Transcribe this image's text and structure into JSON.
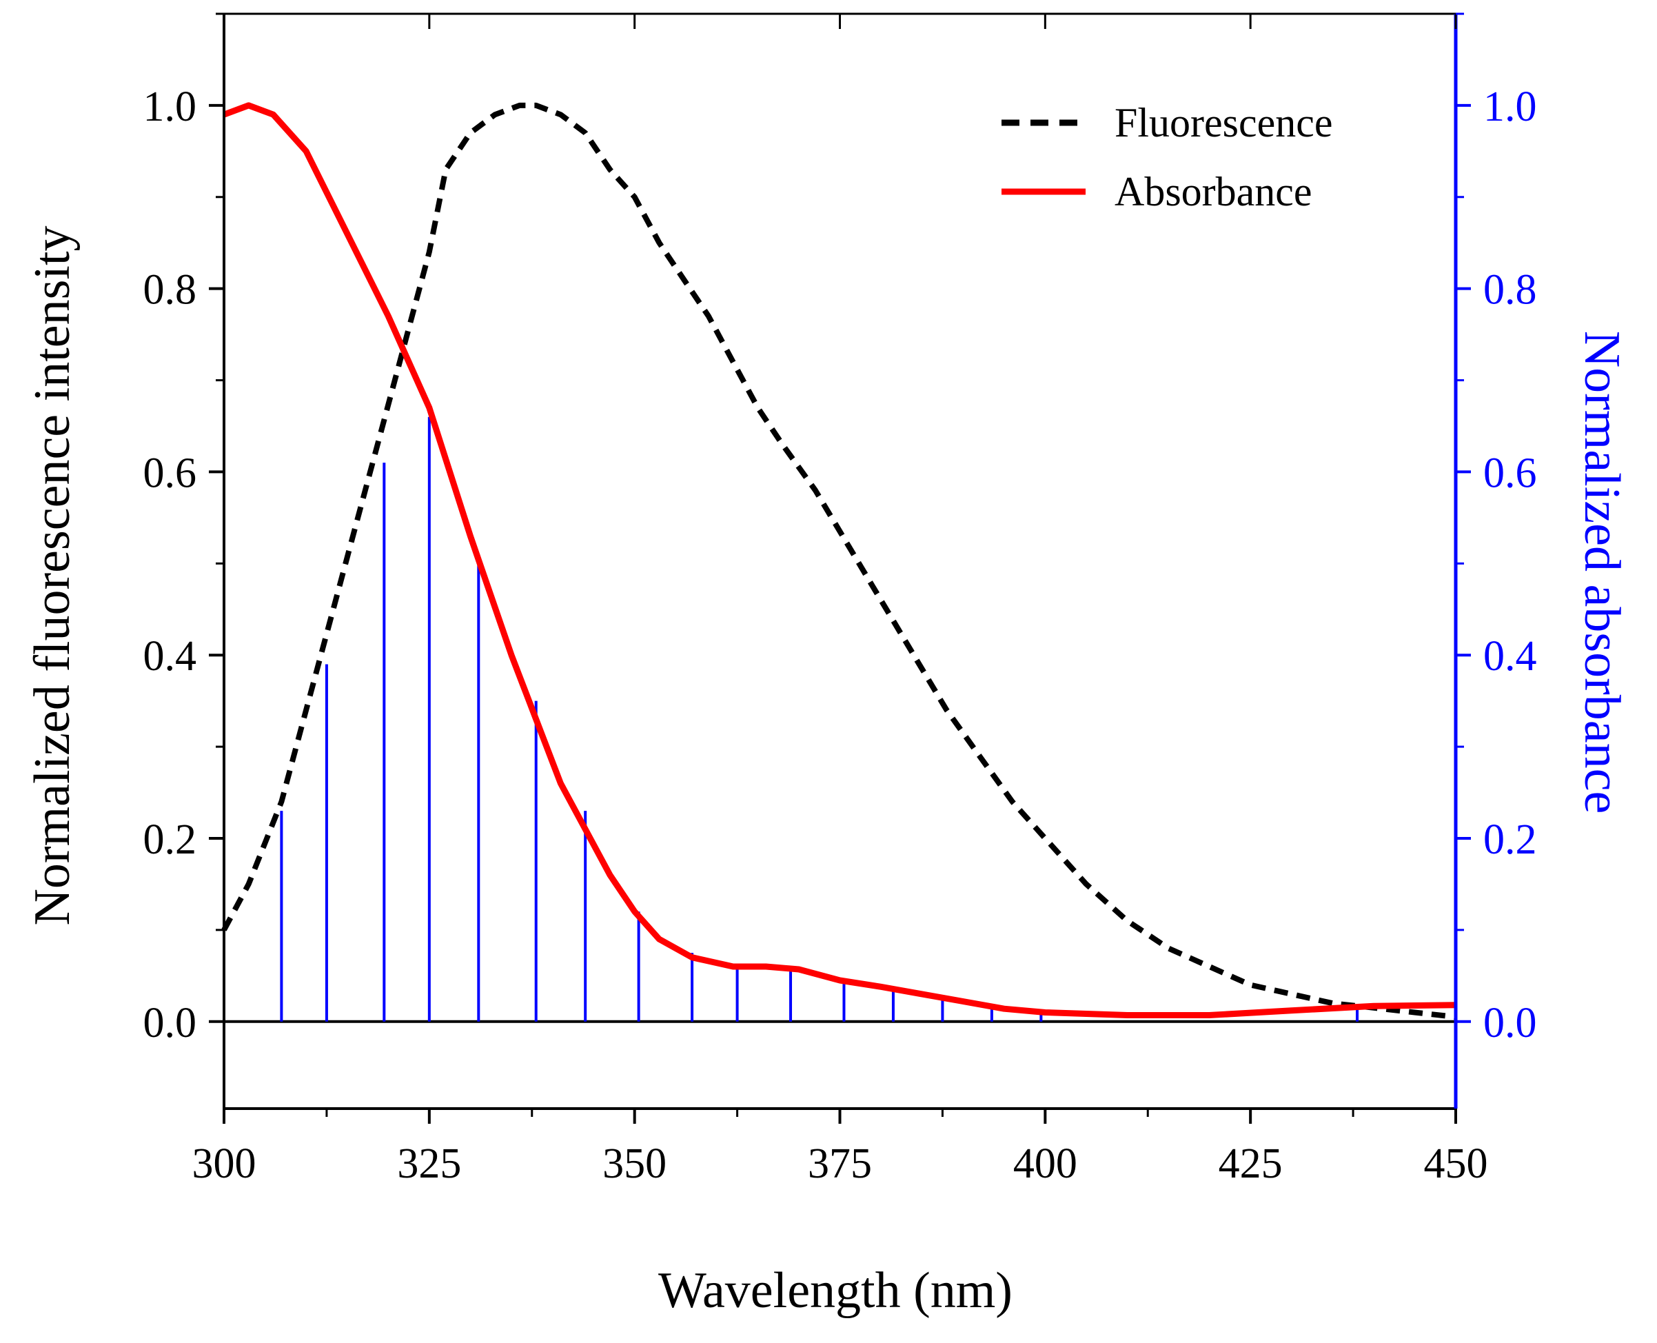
{
  "colors": {
    "fluorescence": "#000000",
    "absorbance": "#ff0000",
    "stems": "#0000ff",
    "right_axis": "#0000ff",
    "axes": "#000000"
  },
  "chart_data": {
    "type": "line",
    "title": "",
    "xlabel": "Wavelength (nm)",
    "ylabel": "Normalized fluorescence intensity",
    "ylabel_right": "Normalized absorbance",
    "xlim": [
      300,
      450
    ],
    "ylim": [
      -0.095,
      1.1
    ],
    "ylim_right": [
      -0.095,
      1.1
    ],
    "xticks": [
      300,
      325,
      350,
      375,
      400,
      425,
      450
    ],
    "xtick_labels": [
      "300",
      "325",
      "350",
      "375",
      "400",
      "425",
      "450"
    ],
    "yticks": [
      0.0,
      0.2,
      0.4,
      0.6,
      0.8,
      1.0
    ],
    "ytick_labels": [
      "0.0",
      "0.2",
      "0.4",
      "0.6",
      "0.8",
      "1.0"
    ],
    "yticks_right": [
      0.0,
      0.2,
      0.4,
      0.6,
      0.8,
      1.0
    ],
    "ytick_labels_right": [
      "0.0",
      "0.2",
      "0.4",
      "0.6",
      "0.8",
      "1.0"
    ],
    "legend": {
      "position": "top-right",
      "entries": [
        {
          "label": "Fluorescence",
          "style": "dashed",
          "color": "#000000"
        },
        {
          "label": "Absorbance",
          "style": "solid",
          "color": "#ff0000"
        }
      ]
    },
    "series": [
      {
        "name": "Fluorescence",
        "style": "dashed",
        "color": "#000000",
        "x": [
          300,
          303,
          307,
          310,
          313,
          316,
          319,
          322,
          325,
          327,
          330,
          333,
          336,
          338,
          341,
          344,
          347,
          350,
          353,
          356,
          359,
          362,
          365,
          368,
          372,
          376,
          380,
          384,
          388,
          392,
          396,
          400,
          405,
          410,
          415,
          420,
          425,
          430,
          435,
          440,
          445,
          450
        ],
        "y": [
          0.1,
          0.15,
          0.24,
          0.34,
          0.44,
          0.54,
          0.64,
          0.74,
          0.84,
          0.93,
          0.97,
          0.99,
          1.0,
          1.0,
          0.99,
          0.97,
          0.93,
          0.9,
          0.85,
          0.81,
          0.77,
          0.72,
          0.67,
          0.63,
          0.58,
          0.52,
          0.46,
          0.4,
          0.34,
          0.29,
          0.24,
          0.2,
          0.15,
          0.11,
          0.08,
          0.06,
          0.04,
          0.03,
          0.02,
          0.015,
          0.01,
          0.005
        ]
      },
      {
        "name": "Absorbance",
        "style": "solid",
        "color": "#ff0000",
        "x": [
          300,
          303,
          306,
          310,
          315,
          320,
          325,
          330,
          335,
          338,
          341,
          344,
          347,
          350,
          353,
          357,
          362,
          366,
          370,
          375,
          380,
          385,
          390,
          395,
          400,
          410,
          420,
          430,
          440,
          450
        ],
        "y": [
          0.99,
          1.0,
          0.99,
          0.95,
          0.86,
          0.77,
          0.67,
          0.53,
          0.4,
          0.33,
          0.26,
          0.21,
          0.16,
          0.12,
          0.09,
          0.07,
          0.06,
          0.06,
          0.057,
          0.045,
          0.038,
          0.03,
          0.022,
          0.014,
          0.01,
          0.007,
          0.007,
          0.012,
          0.017,
          0.018
        ]
      }
    ],
    "stems": {
      "name": "Absorbance stems",
      "color": "#0000ff",
      "x": [
        307,
        312.5,
        319.5,
        325,
        331,
        338,
        344,
        350.5,
        357,
        362.5,
        369,
        375.5,
        381.5,
        387.5,
        393.5,
        399.5,
        438
      ],
      "y": [
        0.23,
        0.39,
        0.61,
        0.66,
        0.51,
        0.35,
        0.23,
        0.12,
        0.075,
        0.06,
        0.06,
        0.045,
        0.035,
        0.026,
        0.015,
        0.01,
        0.015
      ]
    }
  }
}
